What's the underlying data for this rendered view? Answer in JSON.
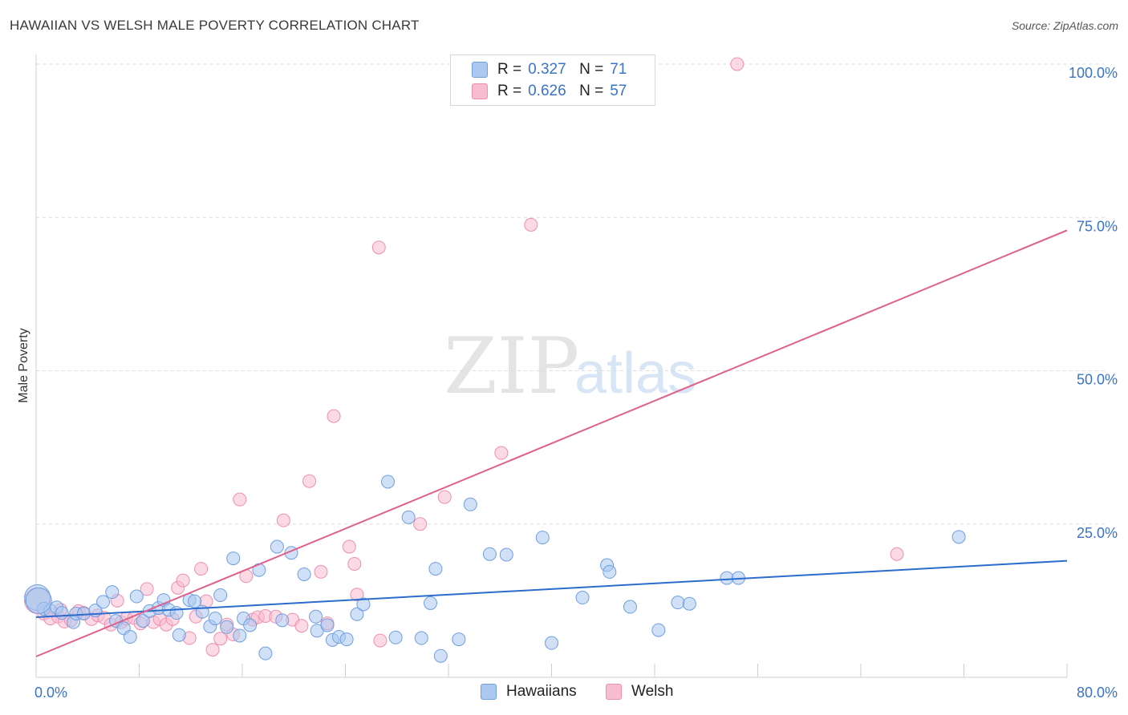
{
  "title": "HAWAIIAN VS WELSH MALE POVERTY CORRELATION CHART",
  "source": "Source: ZipAtlas.com",
  "watermark": {
    "zip": "ZIP",
    "atlas": "atlas"
  },
  "legend": {
    "rows": [
      {
        "r_label": "R = ",
        "r_value": "0.327",
        "n_label": "N = ",
        "n_value": "71",
        "fill": "#aac8f0",
        "stroke": "#6f9ee0"
      },
      {
        "r_label": "R = ",
        "r_value": "0.626",
        "n_label": "N = ",
        "n_value": "57",
        "fill": "#f7bcd0",
        "stroke": "#ee8fb0"
      }
    ]
  },
  "bottom_legend": [
    {
      "label": "Hawaiians",
      "fill": "#aac8f0",
      "stroke": "#6f9ee0"
    },
    {
      "label": "Welsh",
      "fill": "#f7bcd0",
      "stroke": "#ee8fb0"
    }
  ],
  "chart_data": {
    "type": "scatter",
    "title": "HAWAIIAN VS WELSH MALE POVERTY CORRELATION CHART",
    "xlabel": "",
    "ylabel": "Male Poverty",
    "xlim": [
      0,
      80
    ],
    "ylim": [
      0,
      100
    ],
    "x_tick_labels": [
      {
        "value": 0,
        "label": "0.0%"
      },
      {
        "value": 80,
        "label": "80.0%"
      }
    ],
    "y_tick_labels": [
      {
        "value": 25,
        "label": "25.0%"
      },
      {
        "value": 50,
        "label": "50.0%"
      },
      {
        "value": 75,
        "label": "75.0%"
      },
      {
        "value": 100,
        "label": "100.0%"
      }
    ],
    "grid": true,
    "colors": {
      "hawaiians": "#6f9ee0",
      "hawaiians_fill": "#aac8f0",
      "hawaiians_line": "#2b6ccc",
      "welsh": "#ee8fb0",
      "welsh_fill": "#f7bcd0",
      "welsh_line": "#e0608c"
    },
    "series": [
      {
        "name": "Hawaiians",
        "trend": {
          "x": [
            0,
            80
          ],
          "y": [
            9.8,
            19.0
          ]
        },
        "points": [
          [
            0.1,
            13.0
          ],
          [
            0.6,
            11.2
          ],
          [
            1.1,
            10.9
          ],
          [
            1.6,
            11.4
          ],
          [
            2.0,
            10.5
          ],
          [
            2.9,
            9.0
          ],
          [
            3.1,
            10.4
          ],
          [
            3.7,
            10.4
          ],
          [
            4.6,
            10.9
          ],
          [
            5.2,
            12.3
          ],
          [
            5.9,
            13.9
          ],
          [
            6.2,
            9.2
          ],
          [
            6.8,
            8.0
          ],
          [
            7.3,
            6.6
          ],
          [
            7.8,
            13.2
          ],
          [
            8.3,
            9.2
          ],
          [
            8.8,
            10.8
          ],
          [
            9.5,
            11.3
          ],
          [
            9.9,
            12.6
          ],
          [
            10.3,
            11.0
          ],
          [
            10.9,
            10.5
          ],
          [
            11.1,
            6.9
          ],
          [
            11.9,
            12.6
          ],
          [
            12.3,
            12.4
          ],
          [
            12.9,
            10.7
          ],
          [
            13.5,
            8.3
          ],
          [
            13.9,
            9.6
          ],
          [
            14.3,
            13.4
          ],
          [
            14.8,
            8.2
          ],
          [
            15.3,
            19.4
          ],
          [
            15.8,
            6.8
          ],
          [
            16.1,
            9.6
          ],
          [
            16.6,
            8.5
          ],
          [
            17.3,
            17.5
          ],
          [
            17.8,
            3.9
          ],
          [
            18.7,
            21.3
          ],
          [
            19.1,
            9.3
          ],
          [
            19.8,
            20.3
          ],
          [
            20.8,
            16.8
          ],
          [
            21.7,
            9.9
          ],
          [
            21.8,
            7.6
          ],
          [
            22.6,
            8.5
          ],
          [
            23.0,
            6.1
          ],
          [
            23.5,
            6.6
          ],
          [
            24.1,
            6.2
          ],
          [
            24.9,
            10.3
          ],
          [
            25.4,
            11.9
          ],
          [
            27.3,
            31.9
          ],
          [
            27.9,
            6.5
          ],
          [
            28.9,
            26.1
          ],
          [
            29.9,
            6.4
          ],
          [
            30.6,
            12.1
          ],
          [
            31.0,
            17.7
          ],
          [
            31.4,
            3.5
          ],
          [
            32.8,
            6.2
          ],
          [
            33.7,
            28.2
          ],
          [
            35.2,
            20.1
          ],
          [
            36.5,
            20.0
          ],
          [
            39.3,
            22.8
          ],
          [
            40.0,
            5.6
          ],
          [
            42.4,
            13.0
          ],
          [
            44.3,
            18.3
          ],
          [
            44.5,
            17.2
          ],
          [
            46.1,
            11.5
          ],
          [
            48.3,
            7.7
          ],
          [
            49.8,
            12.2
          ],
          [
            50.7,
            12.0
          ],
          [
            53.6,
            16.2
          ],
          [
            54.5,
            16.2
          ],
          [
            71.6,
            22.9
          ],
          [
            0.2,
            12.5
          ]
        ]
      },
      {
        "name": "Welsh",
        "trend": {
          "x": [
            0,
            80
          ],
          "y": [
            3.4,
            72.9
          ]
        },
        "points": [
          [
            0.1,
            12.5
          ],
          [
            0.6,
            10.4
          ],
          [
            1.1,
            9.6
          ],
          [
            1.7,
            9.9
          ],
          [
            2.2,
            9.1
          ],
          [
            2.7,
            9.3
          ],
          [
            3.3,
            10.8
          ],
          [
            3.7,
            10.5
          ],
          [
            4.3,
            9.5
          ],
          [
            4.8,
            10.1
          ],
          [
            5.3,
            9.7
          ],
          [
            5.8,
            8.6
          ],
          [
            6.3,
            12.5
          ],
          [
            6.6,
            9.0
          ],
          [
            7.0,
            9.6
          ],
          [
            7.6,
            9.7
          ],
          [
            8.1,
            8.8
          ],
          [
            8.6,
            14.4
          ],
          [
            9.1,
            9.0
          ],
          [
            9.6,
            9.5
          ],
          [
            10.1,
            8.6
          ],
          [
            10.6,
            9.5
          ],
          [
            11.0,
            14.6
          ],
          [
            11.4,
            15.8
          ],
          [
            11.9,
            6.4
          ],
          [
            12.4,
            9.9
          ],
          [
            12.8,
            17.7
          ],
          [
            13.2,
            12.4
          ],
          [
            13.7,
            4.5
          ],
          [
            14.3,
            6.3
          ],
          [
            14.8,
            8.6
          ],
          [
            15.3,
            7.0
          ],
          [
            15.8,
            29.0
          ],
          [
            16.3,
            16.5
          ],
          [
            16.8,
            9.4
          ],
          [
            17.2,
            9.8
          ],
          [
            17.8,
            10.0
          ],
          [
            18.6,
            9.9
          ],
          [
            19.2,
            25.6
          ],
          [
            19.9,
            9.4
          ],
          [
            20.6,
            8.4
          ],
          [
            21.2,
            32.0
          ],
          [
            22.1,
            17.2
          ],
          [
            22.6,
            8.8
          ],
          [
            23.1,
            42.6
          ],
          [
            24.3,
            21.3
          ],
          [
            24.7,
            18.5
          ],
          [
            24.9,
            13.5
          ],
          [
            26.6,
            70.1
          ],
          [
            26.7,
            6.0
          ],
          [
            29.8,
            25.0
          ],
          [
            31.7,
            29.4
          ],
          [
            36.1,
            36.6
          ],
          [
            38.4,
            73.8
          ],
          [
            54.4,
            100.0
          ],
          [
            66.8,
            20.1
          ],
          [
            1.9,
            11.0
          ]
        ]
      }
    ]
  }
}
